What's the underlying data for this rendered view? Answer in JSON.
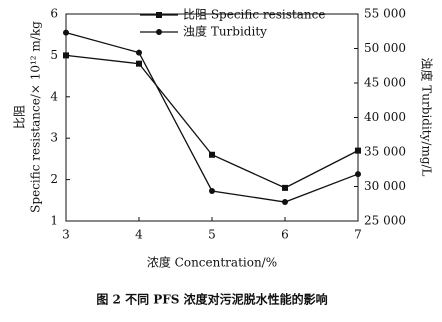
{
  "chart_data": {
    "type": "line",
    "ylabel": [
      "比阻",
      "Specific resistance/× 10¹² m/kg"
    ],
    "y2label": "浊度 Turbidity/mg/L",
    "xlabel": "浓度 Concentration/%",
    "caption": "图 2   不同 PFS 浓度对污泥脱水性能的影响",
    "x": [
      3,
      4,
      5,
      6,
      7
    ],
    "xlim": [
      3,
      7
    ],
    "xticks": [
      3,
      4,
      5,
      6,
      7
    ],
    "ylim": [
      1,
      6
    ],
    "yticks": [
      1,
      2,
      3,
      4,
      5,
      6
    ],
    "y2lim": [
      25000,
      55000
    ],
    "y2ticks": [
      {
        "value": 25000,
        "label": "25 000"
      },
      {
        "value": 30000,
        "label": "30 000"
      },
      {
        "value": 35000,
        "label": "35 000"
      },
      {
        "value": 40000,
        "label": "40 000"
      },
      {
        "value": 45000,
        "label": "45 000"
      },
      {
        "value": 50000,
        "label": "50 000"
      },
      {
        "value": 55000,
        "label": "55 000"
      }
    ],
    "series": [
      {
        "name": "比阻 Specific resistance",
        "color": "#111111",
        "marker": "square",
        "values": [
          5.0,
          4.8,
          2.6,
          1.8,
          2.7
        ]
      },
      {
        "name": "浊度 Turbidity",
        "color": "#111111",
        "marker": "circle",
        "axis": "y2",
        "values": [
          52300,
          49400,
          29350,
          27750,
          31800
        ]
      }
    ]
  }
}
